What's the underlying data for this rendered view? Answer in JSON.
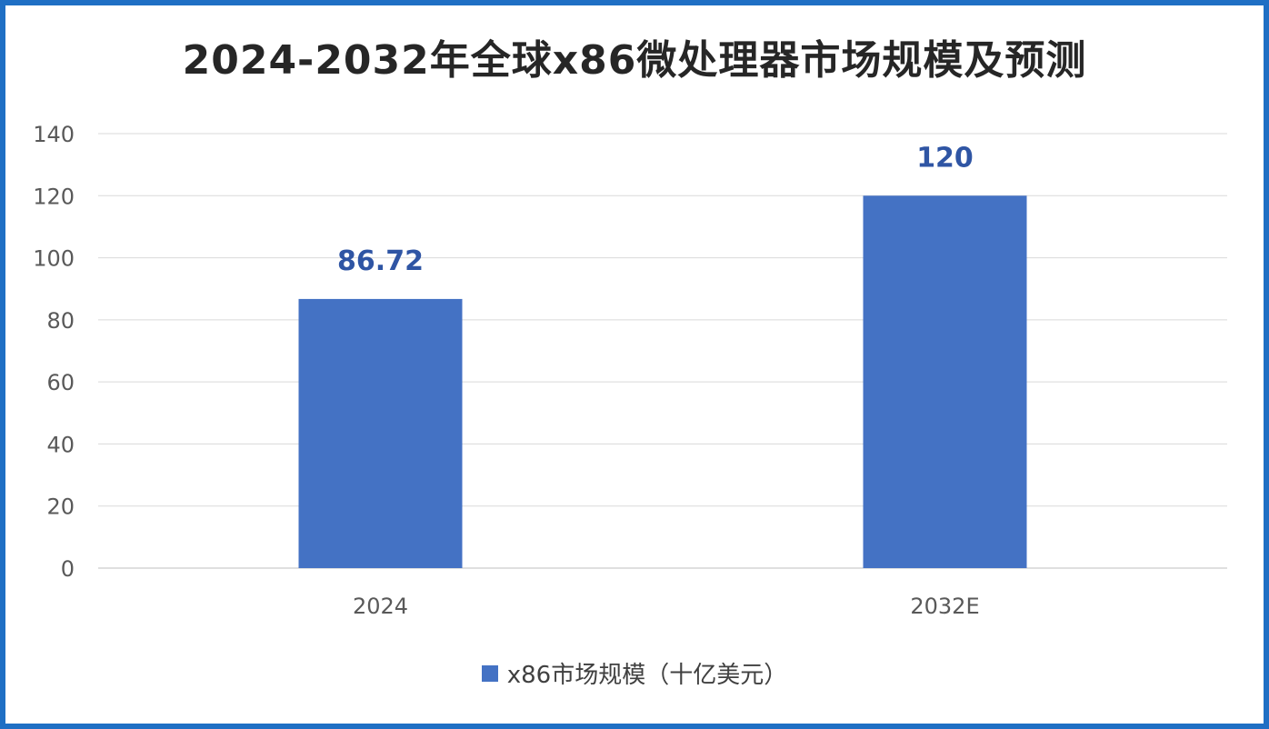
{
  "chart_data": {
    "type": "bar",
    "title": "2024-2032年全球x86微处理器市场规模及预测",
    "categories": [
      "2024",
      "2032E"
    ],
    "series": [
      {
        "name": "x86市场规模（十亿美元）",
        "values": [
          86.72,
          120
        ],
        "data_labels": [
          "86.72",
          "120"
        ]
      }
    ],
    "ylim": [
      0,
      140
    ],
    "yticks": [
      0,
      20,
      40,
      60,
      80,
      100,
      120,
      140
    ],
    "grid": true,
    "legend_position": "bottom",
    "colors": {
      "bar": "#4472c4",
      "data_label": "#2f55a4",
      "frame": "#1f6fc4",
      "grid": "#d9d9d9"
    }
  }
}
